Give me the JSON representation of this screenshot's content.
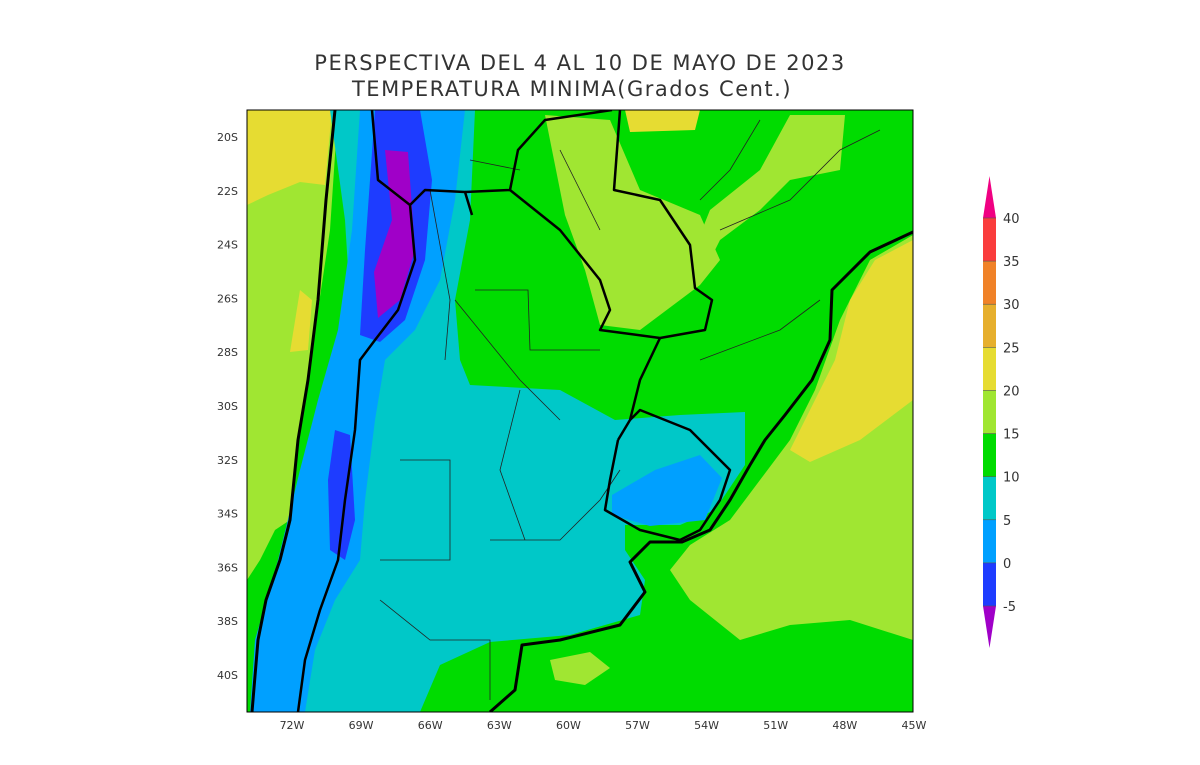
{
  "header": {
    "title": "PERSPECTIVA DEL 4 AL 10 DE MAYO DE 2023",
    "subtitle": "TEMPERATURA MINIMA(Grados Cent.)"
  },
  "map": {
    "lat_labels": [
      "20S",
      "22S",
      "24S",
      "26S",
      "28S",
      "30S",
      "32S",
      "34S",
      "36S",
      "38S",
      "40S"
    ],
    "lon_labels": [
      "72W",
      "69W",
      "66W",
      "63W",
      "60W",
      "57W",
      "54W",
      "51W",
      "48W",
      "45W"
    ]
  },
  "colorbar": {
    "levels": [
      -5,
      0,
      5,
      10,
      15,
      20,
      25,
      30,
      35,
      40
    ],
    "colors": [
      "#a000c8",
      "#1e3cff",
      "#00a0ff",
      "#00c8c8",
      "#00dc00",
      "#a0e632",
      "#e6dc32",
      "#e6af2d",
      "#f08228",
      "#fa3c3c",
      "#f00082"
    ]
  }
}
